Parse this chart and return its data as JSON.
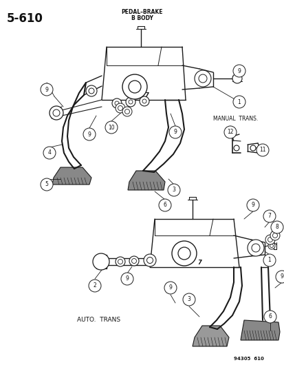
{
  "page_number": "5–610",
  "title_line1": "PEDAL–BRAKE",
  "title_line2": "B BODY",
  "manual_trans_label": "MANUAL  TRANS.",
  "auto_trans_label": "AUTO.  TRANS",
  "figure_number": "94305  610",
  "bg_color": "#ffffff",
  "line_color": "#1a1a1a",
  "text_color": "#111111"
}
